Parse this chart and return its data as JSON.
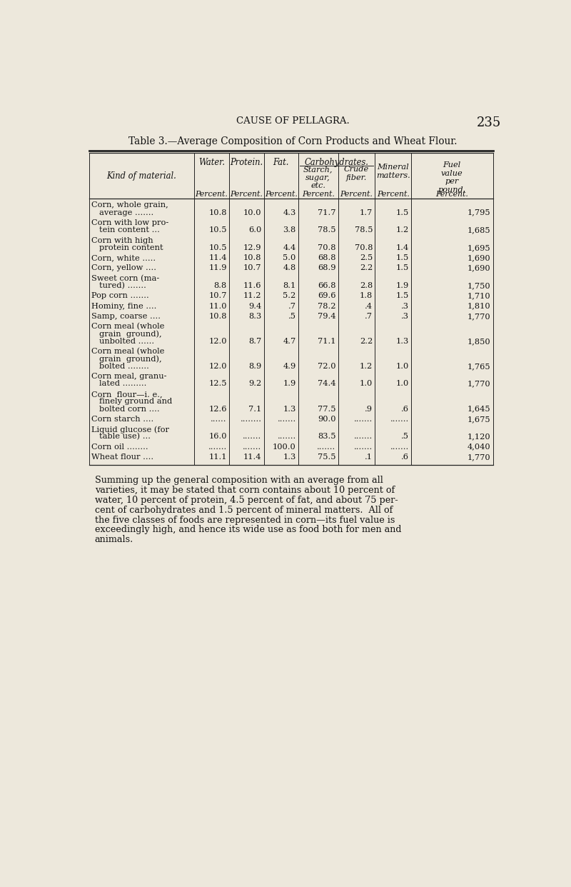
{
  "page_header": "CAUSE OF PELLAGRA.",
  "page_number": "235",
  "table_title": "Table 3.—Average Composition of Corn Products and Wheat Flour.",
  "rows": [
    {
      "kind": [
        "Corn, whole grain,",
        "average ......."
      ],
      "water": "10.8",
      "protein": "10.0",
      "fat": "4.3",
      "starch": "71.7",
      "crude": "1.7",
      "mineral": "1.5",
      "fuel": "1,795"
    },
    {
      "kind": [
        "Corn with low pro-",
        "tein content ..."
      ],
      "water": "10.5",
      "protein": "6.0",
      "fat": "3.8",
      "starch": "78.5",
      "crude": "78.5",
      "mineral": "1.2",
      "fuel": "1,685"
    },
    {
      "kind": [
        "Corn with high",
        "protein content"
      ],
      "water": "10.5",
      "protein": "12.9",
      "fat": "4.4",
      "starch": "70.8",
      "crude": "70.8",
      "mineral": "1.4",
      "fuel": "1,695"
    },
    {
      "kind": [
        "Corn, white ....."
      ],
      "water": "11.4",
      "protein": "10.8",
      "fat": "5.0",
      "starch": "68.8",
      "crude": "2.5",
      "mineral": "1.5",
      "fuel": "1,690"
    },
    {
      "kind": [
        "Corn, yellow ...."
      ],
      "water": "11.9",
      "protein": "10.7",
      "fat": "4.8",
      "starch": "68.9",
      "crude": "2.2",
      "mineral": "1.5",
      "fuel": "1,690"
    },
    {
      "kind": [
        "Sweet corn (ma-",
        "tured) ......."
      ],
      "water": "8.8",
      "protein": "11.6",
      "fat": "8.1",
      "starch": "66.8",
      "crude": "2.8",
      "mineral": "1.9",
      "fuel": "1,750"
    },
    {
      "kind": [
        "Pop corn ......."
      ],
      "water": "10.7",
      "protein": "11.2",
      "fat": "5.2",
      "starch": "69.6",
      "crude": "1.8",
      "mineral": "1.5",
      "fuel": "1,710"
    },
    {
      "kind": [
        "Hominy, fine ...."
      ],
      "water": "11.0",
      "protein": "9.4",
      "fat": ".7",
      "starch": "78.2",
      "crude": ".4",
      "mineral": ".3",
      "fuel": "1,810"
    },
    {
      "kind": [
        "Samp, coarse ...."
      ],
      "water": "10.8",
      "protein": "8.3",
      "fat": ".5",
      "starch": "79.4",
      "crude": ".7",
      "mineral": ".3",
      "fuel": "1,770"
    },
    {
      "kind": [
        "Corn meal (whole",
        "grain  ground),",
        "unbolted ......"
      ],
      "water": "12.0",
      "protein": "8.7",
      "fat": "4.7",
      "starch": "71.1",
      "crude": "2.2",
      "mineral": "1.3",
      "fuel": "1,850"
    },
    {
      "kind": [
        "Corn meal (whole",
        "grain  ground),",
        "bolted ........"
      ],
      "water": "12.0",
      "protein": "8.9",
      "fat": "4.9",
      "starch": "72.0",
      "crude": "1.2",
      "mineral": "1.0",
      "fuel": "1,765"
    },
    {
      "kind": [
        "Corn meal, granu-",
        "lated ........."
      ],
      "water": "12.5",
      "protein": "9.2",
      "fat": "1.9",
      "starch": "74.4",
      "crude": "1.0",
      "mineral": "1.0",
      "fuel": "1,770"
    },
    {
      "kind": [
        "Corn  flour—i. e.,",
        "finely ground and",
        "bolted corn ...."
      ],
      "water": "12.6",
      "protein": "7.1",
      "fat": "1.3",
      "starch": "77.5",
      "crude": ".9",
      "mineral": ".6",
      "fuel": "1,645"
    },
    {
      "kind": [
        "Corn starch ...."
      ],
      "water": "......",
      "protein": "........",
      "fat": ".......",
      "starch": "90.0",
      "crude": ".......",
      "mineral": ".......",
      "fuel": "1,675"
    },
    {
      "kind": [
        "Liquid glucose (for",
        "table use) ..."
      ],
      "water": "16.0",
      "protein": ".......",
      "fat": ".......",
      "starch": "83.5",
      "crude": ".......",
      "mineral": ".5",
      "fuel": "1,120"
    },
    {
      "kind": [
        "Corn oil ........"
      ],
      "water": ".......",
      "protein": ".......",
      "fat": "100.0",
      "starch": ".......",
      "crude": ".......",
      "mineral": ".......",
      "fuel": "4,040"
    },
    {
      "kind": [
        "Wheat flour ...."
      ],
      "water": "11.1",
      "protein": "11.4",
      "fat": "1.3",
      "starch": "75.5",
      "crude": ".1",
      "mineral": ".6",
      "fuel": "1,770"
    }
  ],
  "footer_text": "Summing up the general composition with an average from all varieties, it may be stated that corn contains about 10 percent of water, 10 percent of protein, 4.5 percent of fat, and about 75 per-cent of carbohydrates and 1.5 percent of mineral matters.  All of the five classes of foods are represented in corn—its fuel value is exceedingly high, and hence its wide use as food both for men and animals.",
  "bg_color": "#ede8dc",
  "text_color": "#111111",
  "line_color": "#222222"
}
